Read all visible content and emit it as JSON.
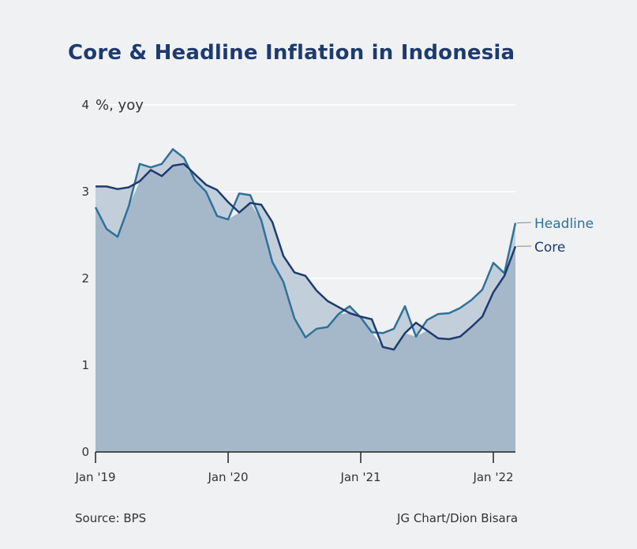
{
  "chart_data": {
    "type": "line",
    "title": "Core & Headline Inflation in Indonesia",
    "ylabel": "%, yoy",
    "xlabel": "",
    "ylim": [
      0,
      4
    ],
    "yticks": [
      0,
      1,
      2,
      3,
      4
    ],
    "xticks": [
      {
        "label": "Jan '19",
        "index": 0
      },
      {
        "label": "Jan '20",
        "index": 12
      },
      {
        "label": "Jan '21",
        "index": 24
      },
      {
        "label": "Jan '22",
        "index": 36
      }
    ],
    "start": "Jan 2019",
    "end": "Mar 2022",
    "grid": true,
    "series": [
      {
        "name": "Headline",
        "color": "#2f7199",
        "values": [
          2.82,
          2.57,
          2.48,
          2.83,
          3.32,
          3.28,
          3.32,
          3.49,
          3.39,
          3.13,
          3.0,
          2.72,
          2.68,
          2.98,
          2.96,
          2.67,
          2.19,
          1.96,
          1.54,
          1.32,
          1.42,
          1.44,
          1.59,
          1.68,
          1.55,
          1.38,
          1.37,
          1.42,
          1.68,
          1.33,
          1.52,
          1.59,
          1.6,
          1.66,
          1.75,
          1.87,
          2.18,
          2.06,
          2.64
        ]
      },
      {
        "name": "Core",
        "color": "#1d3b6e",
        "values": [
          3.06,
          3.06,
          3.03,
          3.05,
          3.12,
          3.25,
          3.18,
          3.3,
          3.32,
          3.2,
          3.08,
          3.02,
          2.88,
          2.76,
          2.87,
          2.85,
          2.65,
          2.26,
          2.07,
          2.03,
          1.86,
          1.74,
          1.67,
          1.6,
          1.56,
          1.53,
          1.21,
          1.18,
          1.37,
          1.49,
          1.4,
          1.31,
          1.3,
          1.33,
          1.44,
          1.56,
          1.84,
          2.03,
          2.37
        ]
      }
    ]
  },
  "footer": {
    "source": "Source: BPS",
    "credit": "JG Chart/Dion Bisara"
  }
}
